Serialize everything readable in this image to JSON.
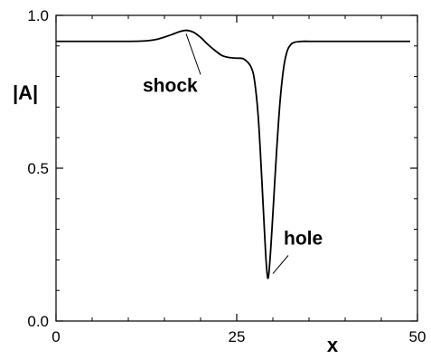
{
  "chart_data": {
    "type": "line",
    "title": "",
    "xlabel": "x",
    "ylabel": "|A|",
    "xlim": [
      0,
      50
    ],
    "ylim": [
      0.0,
      1.0
    ],
    "x_ticks": [
      {
        "value": 0,
        "label": "0"
      },
      {
        "value": 25,
        "label": "25"
      },
      {
        "value": 50,
        "label": "50"
      }
    ],
    "y_ticks": [
      {
        "value": 0.0,
        "label": "0.0"
      },
      {
        "value": 0.5,
        "label": "0.5"
      },
      {
        "value": 1.0,
        "label": "1.0"
      }
    ],
    "grid": false,
    "legend": "none",
    "line_color": "#000000",
    "series": [
      {
        "x": [
          0,
          2,
          5,
          8,
          10,
          12,
          13,
          14,
          15,
          16,
          17,
          18,
          19,
          20,
          21,
          22,
          23,
          24,
          25,
          26,
          27,
          27.5,
          28,
          28.5,
          29,
          29.3,
          29.6,
          30,
          30.5,
          31,
          31.5,
          32,
          32.5,
          33,
          34,
          35,
          37,
          40,
          45,
          49
        ],
        "y": [
          0.915,
          0.915,
          0.915,
          0.915,
          0.915,
          0.916,
          0.918,
          0.922,
          0.929,
          0.937,
          0.946,
          0.951,
          0.945,
          0.928,
          0.905,
          0.885,
          0.868,
          0.862,
          0.86,
          0.857,
          0.83,
          0.78,
          0.66,
          0.45,
          0.22,
          0.14,
          0.2,
          0.35,
          0.55,
          0.72,
          0.83,
          0.885,
          0.905,
          0.912,
          0.915,
          0.915,
          0.915,
          0.915,
          0.915,
          0.915
        ]
      }
    ],
    "annotations": [
      {
        "text": "shock",
        "x": 12,
        "y": 0.75,
        "point_x": 18,
        "point_y": 0.94
      },
      {
        "text": "hole",
        "x": 31.5,
        "y": 0.25,
        "point_x": 30,
        "point_y": 0.155
      }
    ]
  }
}
